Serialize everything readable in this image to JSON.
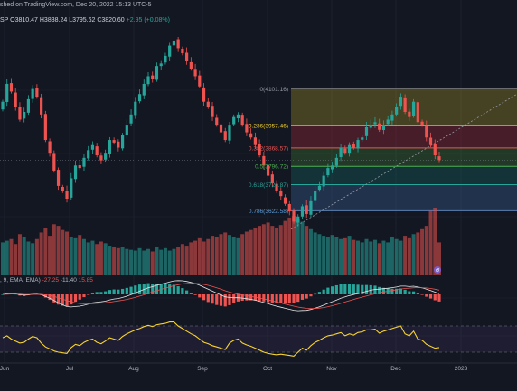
{
  "header": {
    "published": "shed on TradingView.com, Dec 20, 2022 15:13 UTC-5",
    "symbol_suffix": "SP",
    "open": "O3810.47",
    "high": "H3838.24",
    "low": "L3795.62",
    "close": "C3820.60",
    "change": "+2.95 (+0.08%)"
  },
  "indicators": {
    "macd_label": ", 9, EMA, EMA)",
    "macd_v1": "-27.25",
    "macd_v2": "-11.40",
    "macd_v3": "15.85"
  },
  "colors": {
    "background": "#131722",
    "up": "#26a69a",
    "down": "#ef5350",
    "rsi": "#f7d330",
    "macd_line": "#e6e6e6",
    "signal_line": "#ef5350"
  },
  "chart_data": {
    "type": "candlestick",
    "price_range": [
      3500,
      4350
    ],
    "x_tick_labels": [
      "Jun",
      "Jul",
      "Aug",
      "Sep",
      "Oct",
      "Nov",
      "Dec",
      "2023"
    ],
    "fibonacci": [
      {
        "ratio": "0",
        "price": 4101.16,
        "label": "0(4101.16)"
      },
      {
        "ratio": "0.236",
        "price": 3957.46,
        "label": "0.236(3957.46)"
      },
      {
        "ratio": "0.382",
        "price": 3868.57,
        "label": "0.382(3868.57)"
      },
      {
        "ratio": "0.5",
        "price": 3796.72,
        "label": "0.5(3796.72)"
      },
      {
        "ratio": "0.618",
        "price": 3724.87,
        "label": "0.618(3724.87)"
      },
      {
        "ratio": "0.786",
        "price": 3622.58,
        "label": "0.786(3622.58)"
      }
    ],
    "close_series": [
      4050,
      4120,
      4090,
      4030,
      3980,
      4010,
      4060,
      4100,
      4070,
      4000,
      3900,
      3850,
      3780,
      3720,
      3700,
      3670,
      3750,
      3800,
      3790,
      3830,
      3860,
      3880,
      3840,
      3820,
      3850,
      3900,
      3890,
      3870,
      3920,
      3960,
      4000,
      4050,
      4080,
      4120,
      4150,
      4140,
      4190,
      4200,
      4230,
      4270,
      4290,
      4260,
      4240,
      4210,
      4180,
      4150,
      4110,
      4050,
      4030,
      3990,
      3960,
      3930,
      3900,
      3960,
      3990,
      4000,
      3960,
      3930,
      3910,
      3880,
      3840,
      3800,
      3760,
      3730,
      3700,
      3680,
      3650,
      3620,
      3580,
      3600,
      3640,
      3610,
      3660,
      3700,
      3720,
      3760,
      3790,
      3800,
      3830,
      3870,
      3850,
      3880,
      3870,
      3900,
      3910,
      3950,
      3960,
      3970,
      3940,
      3960,
      3980,
      4000,
      4030,
      4070,
      4010,
      3990,
      4050,
      3970,
      3960,
      3910,
      3880,
      3840,
      3821
    ],
    "volume_series": [
      40,
      42,
      44,
      38,
      50,
      46,
      41,
      39,
      44,
      52,
      57,
      48,
      62,
      60,
      55,
      53,
      47,
      45,
      49,
      44,
      40,
      42,
      38,
      41,
      39,
      36,
      35,
      33,
      34,
      32,
      31,
      30,
      33,
      30,
      32,
      29,
      34,
      31,
      33,
      30,
      32,
      35,
      38,
      36,
      40,
      42,
      45,
      41,
      44,
      48,
      46,
      50,
      52,
      49,
      47,
      45,
      50,
      53,
      55,
      58,
      60,
      62,
      64,
      60,
      58,
      61,
      66,
      70,
      72,
      68,
      65,
      60,
      56,
      52,
      50,
      48,
      47,
      49,
      46,
      44,
      45,
      48,
      43,
      42,
      40,
      44,
      41,
      43,
      39,
      42,
      40,
      46,
      44,
      42,
      48,
      45,
      50,
      52,
      56,
      60,
      78,
      82,
      40
    ],
    "rsi_series": [
      52,
      55,
      50,
      47,
      44,
      45,
      50,
      54,
      52,
      44,
      38,
      35,
      32,
      30,
      29,
      28,
      37,
      42,
      40,
      45,
      48,
      50,
      45,
      43,
      47,
      52,
      50,
      48,
      54,
      58,
      61,
      64,
      66,
      69,
      71,
      69,
      72,
      73,
      74,
      76,
      76,
      70,
      66,
      62,
      58,
      55,
      50,
      45,
      43,
      40,
      38,
      36,
      34,
      44,
      48,
      50,
      44,
      41,
      39,
      36,
      33,
      30,
      28,
      27,
      26,
      27,
      26,
      25,
      24,
      30,
      36,
      33,
      40,
      45,
      48,
      52,
      55,
      56,
      58,
      60,
      55,
      58,
      56,
      60,
      61,
      64,
      64,
      65,
      59,
      62,
      64,
      66,
      68,
      70,
      58,
      55,
      62,
      50,
      48,
      42,
      39,
      36,
      37
    ]
  }
}
